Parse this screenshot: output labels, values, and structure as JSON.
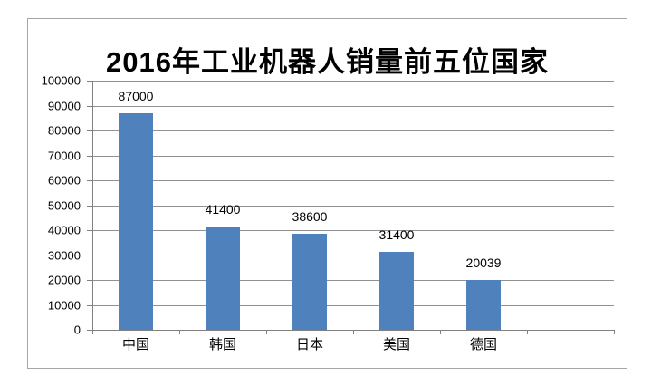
{
  "page": {
    "background": "#FFFFFF"
  },
  "chart_frame": {
    "border_color": "#A6A6A6",
    "background": "#FFFFFF"
  },
  "chart_data": {
    "type": "bar",
    "title": "2016年工业机器人销量前五位国家",
    "categories": [
      "中国",
      "韩国",
      "日本",
      "美国",
      "德国"
    ],
    "values": [
      87000,
      41400,
      38600,
      31400,
      20039
    ],
    "data_labels": [
      "87000",
      "41400",
      "38600",
      "31400",
      "20039"
    ],
    "xlabel": "",
    "ylabel": "",
    "ylim": [
      0,
      100000
    ],
    "yticks": [
      0,
      10000,
      20000,
      30000,
      40000,
      50000,
      60000,
      70000,
      80000,
      90000,
      100000
    ],
    "ytick_labels": [
      "0",
      "10000",
      "20000",
      "30000",
      "40000",
      "50000",
      "60000",
      "70000",
      "80000",
      "90000",
      "100000"
    ],
    "num_category_slots": 6,
    "grid": true,
    "legend": false,
    "colors": {
      "bar": "#4F81BD",
      "gridline": "#919191",
      "axis": "#808080",
      "text": "#000000"
    }
  }
}
